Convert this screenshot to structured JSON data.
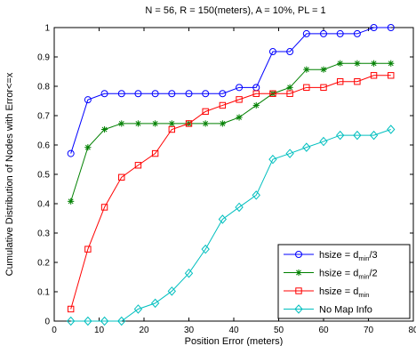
{
  "chart_data": {
    "type": "line",
    "title": "N = 56, R = 150(meters), A = 10%, PL = 1",
    "xlabel": "Position Error (meters)",
    "ylabel": "Cumulative Distribution of Nodes with Error<=x",
    "xlim": [
      0,
      80
    ],
    "ylim": [
      0,
      1
    ],
    "xticks": [
      "0",
      "10",
      "20",
      "30",
      "40",
      "50",
      "60",
      "70",
      "80"
    ],
    "yticks": [
      "0",
      "0.1",
      "0.2",
      "0.3",
      "0.4",
      "0.5",
      "0.6",
      "0.7",
      "0.8",
      "0.9",
      "1"
    ],
    "grid": false,
    "legend_position": "bottom-right",
    "series": [
      {
        "name": "hsize = d_min/3",
        "legend_main": "hsize = d",
        "legend_sub": "min",
        "legend_tail": "/3",
        "color": "#0000ff",
        "marker": "circle",
        "x": [
          3.7,
          7.5,
          11.2,
          15.0,
          18.7,
          22.5,
          26.2,
          30.0,
          33.7,
          37.5,
          41.2,
          45.0,
          48.7,
          52.5,
          56.2,
          60.0,
          63.7,
          67.5,
          71.2,
          75.0
        ],
        "values": [
          0.571,
          0.754,
          0.775,
          0.775,
          0.775,
          0.775,
          0.775,
          0.775,
          0.775,
          0.775,
          0.796,
          0.796,
          0.918,
          0.918,
          0.979,
          0.979,
          0.979,
          0.979,
          1.0,
          1.0
        ]
      },
      {
        "name": "hsize = d_min/2",
        "legend_main": "hsize = d",
        "legend_sub": "min",
        "legend_tail": "/2",
        "color": "#008000",
        "marker": "star",
        "x": [
          3.7,
          7.5,
          11.2,
          15.0,
          18.7,
          22.5,
          26.2,
          30.0,
          33.7,
          37.5,
          41.2,
          45.0,
          48.7,
          52.5,
          56.2,
          60.0,
          63.7,
          67.5,
          71.2,
          75.0
        ],
        "values": [
          0.408,
          0.592,
          0.653,
          0.673,
          0.673,
          0.673,
          0.673,
          0.673,
          0.673,
          0.673,
          0.694,
          0.735,
          0.775,
          0.796,
          0.857,
          0.857,
          0.878,
          0.878,
          0.878,
          0.878
        ]
      },
      {
        "name": "hsize = d_min",
        "legend_main": "hsize = d",
        "legend_sub": "min",
        "legend_tail": "",
        "color": "#ff0000",
        "marker": "square",
        "x": [
          3.7,
          7.5,
          11.2,
          15.0,
          18.7,
          22.5,
          26.2,
          30.0,
          33.7,
          37.5,
          41.2,
          45.0,
          48.7,
          52.5,
          56.2,
          60.0,
          63.7,
          67.5,
          71.2,
          75.0
        ],
        "values": [
          0.041,
          0.245,
          0.388,
          0.49,
          0.531,
          0.571,
          0.653,
          0.673,
          0.714,
          0.735,
          0.755,
          0.775,
          0.775,
          0.775,
          0.796,
          0.796,
          0.816,
          0.816,
          0.837,
          0.837
        ]
      },
      {
        "name": "No Map Info",
        "legend_main": "No Map Info",
        "legend_sub": "",
        "legend_tail": "",
        "color": "#00bfbf",
        "marker": "diamond",
        "x": [
          3.7,
          7.5,
          11.2,
          15.0,
          18.7,
          22.5,
          26.2,
          30.0,
          33.7,
          37.5,
          41.2,
          45.0,
          48.7,
          52.5,
          56.2,
          60.0,
          63.7,
          67.5,
          71.2,
          75.0
        ],
        "values": [
          0.0,
          0.0,
          0.0,
          0.0,
          0.041,
          0.061,
          0.102,
          0.163,
          0.245,
          0.347,
          0.388,
          0.429,
          0.551,
          0.571,
          0.592,
          0.612,
          0.633,
          0.633,
          0.633,
          0.653
        ]
      }
    ]
  }
}
